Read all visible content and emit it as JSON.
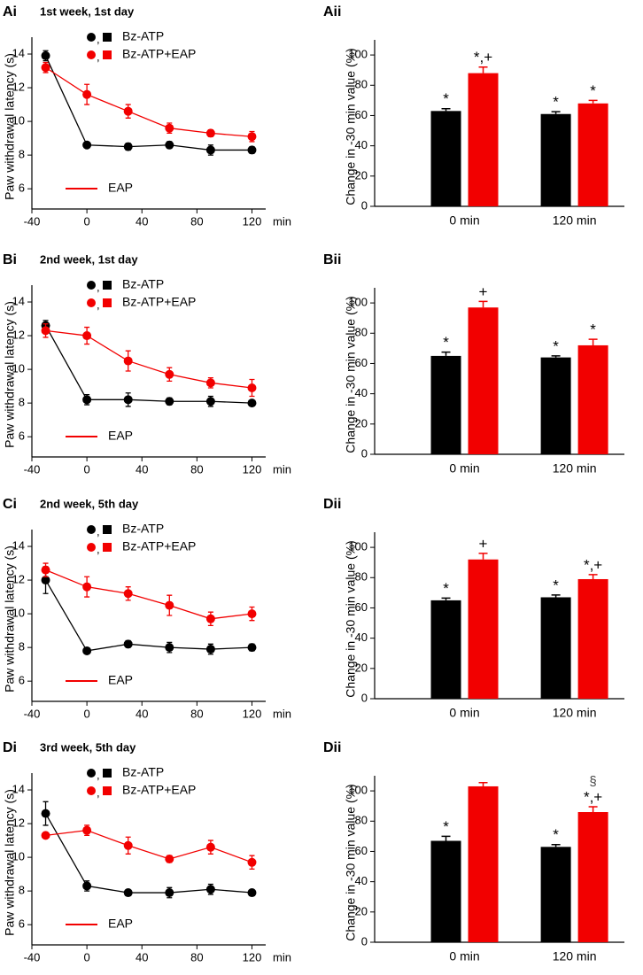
{
  "chart_data": [
    {
      "type": "line",
      "panel_label": "Ai",
      "title": "1st week, 1st day",
      "ylabel": "Paw withdrawal latency (s)",
      "xlabel": "min",
      "xlim": [
        -40,
        130
      ],
      "xticks": [
        -40,
        0,
        40,
        80,
        120
      ],
      "ylim": [
        4.8,
        15
      ],
      "yticks": [
        6,
        8,
        10,
        12,
        14
      ],
      "x": [
        -30,
        0,
        30,
        60,
        90,
        120
      ],
      "legend_marker_separator": ",",
      "series": [
        {
          "name": "Bz-ATP",
          "color": "#000000",
          "values": [
            13.9,
            8.6,
            8.5,
            8.6,
            8.3,
            8.3
          ],
          "errors": [
            0.3,
            0.15,
            0.2,
            0.2,
            0.3,
            0.2
          ]
        },
        {
          "name": "Bz-ATP+EAP",
          "color": "#f20000",
          "values": [
            13.2,
            11.6,
            10.6,
            9.6,
            9.3,
            9.1
          ],
          "errors": [
            0.3,
            0.6,
            0.4,
            0.3,
            0.2,
            0.3
          ]
        }
      ],
      "annotation": "EAP",
      "annotation_color": "#f20000"
    },
    {
      "type": "bar",
      "panel_label": "Aii",
      "ylabel": "Change in -30 min value (%)",
      "categories": [
        "0 min",
        "120 min"
      ],
      "ylim": [
        0,
        110
      ],
      "yticks": [
        0,
        20,
        40,
        60,
        80,
        100
      ],
      "series": [
        {
          "color": "#000000",
          "values": [
            63,
            61
          ],
          "errors": [
            1.5,
            1.5
          ],
          "labels": [
            [
              "*"
            ],
            [
              "*"
            ]
          ]
        },
        {
          "color": "#f20000",
          "values": [
            88,
            68
          ],
          "errors": [
            4,
            2
          ],
          "labels": [
            [
              "*,+"
            ],
            [
              "*"
            ]
          ]
        }
      ]
    },
    {
      "type": "line",
      "panel_label": "Bi",
      "title": "2nd week, 1st day",
      "ylabel": "Paw withdrawal latency (s)",
      "xlabel": "min",
      "xlim": [
        -40,
        130
      ],
      "xticks": [
        -40,
        0,
        40,
        80,
        120
      ],
      "ylim": [
        4.8,
        15
      ],
      "yticks": [
        6,
        8,
        10,
        12,
        14
      ],
      "x": [
        -30,
        0,
        30,
        60,
        90,
        120
      ],
      "legend_marker_separator": ",",
      "series": [
        {
          "name": "Bz-ATP",
          "color": "#000000",
          "values": [
            12.6,
            8.2,
            8.2,
            8.1,
            8.1,
            8.0
          ],
          "errors": [
            0.3,
            0.3,
            0.4,
            0.2,
            0.3,
            0.1
          ]
        },
        {
          "name": "Bz-ATP+EAP",
          "color": "#f20000",
          "values": [
            12.3,
            12.0,
            10.5,
            9.7,
            9.2,
            8.9
          ],
          "errors": [
            0.4,
            0.5,
            0.6,
            0.4,
            0.3,
            0.5
          ]
        }
      ],
      "annotation": "EAP",
      "annotation_color": "#f20000"
    },
    {
      "type": "bar",
      "panel_label": "Bii",
      "ylabel": "Change in -30 min value (%)",
      "categories": [
        "0 min",
        "120 min"
      ],
      "ylim": [
        0,
        110
      ],
      "yticks": [
        0,
        20,
        40,
        60,
        80,
        100
      ],
      "series": [
        {
          "color": "#000000",
          "values": [
            65,
            64
          ],
          "errors": [
            2.5,
            1
          ],
          "labels": [
            [
              "*"
            ],
            [
              "*"
            ]
          ]
        },
        {
          "color": "#f20000",
          "values": [
            97,
            72
          ],
          "errors": [
            4,
            4
          ],
          "labels": [
            [
              "+"
            ],
            [
              "*"
            ]
          ]
        }
      ]
    },
    {
      "type": "line",
      "panel_label": "Ci",
      "title": "2nd week, 5th day",
      "ylabel": "Paw withdrawal latency (s)",
      "xlabel": "min",
      "xlim": [
        -40,
        130
      ],
      "xticks": [
        -40,
        0,
        40,
        80,
        120
      ],
      "ylim": [
        4.8,
        15
      ],
      "yticks": [
        6,
        8,
        10,
        12,
        14
      ],
      "x": [
        -30,
        0,
        30,
        60,
        90,
        120
      ],
      "legend_marker_separator": ",",
      "series": [
        {
          "name": "Bz-ATP",
          "color": "#000000",
          "values": [
            12.0,
            7.8,
            8.2,
            8.0,
            7.9,
            8.0
          ],
          "errors": [
            0.8,
            0.1,
            0.2,
            0.3,
            0.3,
            0.2
          ]
        },
        {
          "name": "Bz-ATP+EAP",
          "color": "#f20000",
          "values": [
            12.6,
            11.6,
            11.2,
            10.5,
            9.7,
            10.0
          ],
          "errors": [
            0.4,
            0.6,
            0.4,
            0.6,
            0.4,
            0.4
          ]
        }
      ],
      "annotation": "EAP",
      "annotation_color": "#f20000"
    },
    {
      "type": "bar",
      "panel_label": "Dii",
      "ylabel": "Change in -30 min value (%)",
      "categories": [
        "0 min",
        "120 min"
      ],
      "ylim": [
        0,
        110
      ],
      "yticks": [
        0,
        20,
        40,
        60,
        80,
        100
      ],
      "series": [
        {
          "color": "#000000",
          "values": [
            65,
            67
          ],
          "errors": [
            1.5,
            1.5
          ],
          "labels": [
            [
              "*"
            ],
            [
              "*"
            ]
          ]
        },
        {
          "color": "#f20000",
          "values": [
            92,
            79
          ],
          "errors": [
            4,
            3
          ],
          "labels": [
            [
              "+"
            ],
            [
              "*,+"
            ]
          ]
        }
      ]
    },
    {
      "type": "line",
      "panel_label": "Di",
      "title": "3rd week, 5th day",
      "ylabel": "Paw withdrawal latency (s)",
      "xlabel": "min",
      "xlim": [
        -40,
        130
      ],
      "xticks": [
        -40,
        0,
        40,
        80,
        120
      ],
      "ylim": [
        4.8,
        15
      ],
      "yticks": [
        6,
        8,
        10,
        12,
        14
      ],
      "x": [
        -30,
        0,
        30,
        60,
        90,
        120
      ],
      "legend_marker_separator": ",",
      "series": [
        {
          "name": "Bz-ATP",
          "color": "#000000",
          "values": [
            12.6,
            8.3,
            7.9,
            7.9,
            8.1,
            7.9
          ],
          "errors": [
            0.7,
            0.3,
            0.1,
            0.3,
            0.3,
            0.1
          ]
        },
        {
          "name": "Bz-ATP+EAP",
          "color": "#f20000",
          "values": [
            11.3,
            11.6,
            10.7,
            9.9,
            10.6,
            9.7
          ],
          "errors": [
            0.1,
            0.3,
            0.5,
            0.2,
            0.4,
            0.4
          ]
        }
      ],
      "annotation": "EAP",
      "annotation_color": "#f20000"
    },
    {
      "type": "bar",
      "panel_label": "Dii",
      "ylabel": "Change in -30 min value (%)",
      "categories": [
        "0 min",
        "120 min"
      ],
      "ylim": [
        0,
        110
      ],
      "yticks": [
        0,
        20,
        40,
        60,
        80,
        100
      ],
      "series": [
        {
          "color": "#000000",
          "values": [
            67,
            63
          ],
          "errors": [
            3,
            1.5
          ],
          "labels": [
            [
              "*"
            ],
            [
              "*"
            ]
          ]
        },
        {
          "color": "#f20000",
          "values": [
            103,
            86
          ],
          "errors": [
            2.5,
            3.5
          ],
          "labels": [
            null,
            [
              "§",
              "*,+"
            ]
          ]
        }
      ]
    }
  ]
}
